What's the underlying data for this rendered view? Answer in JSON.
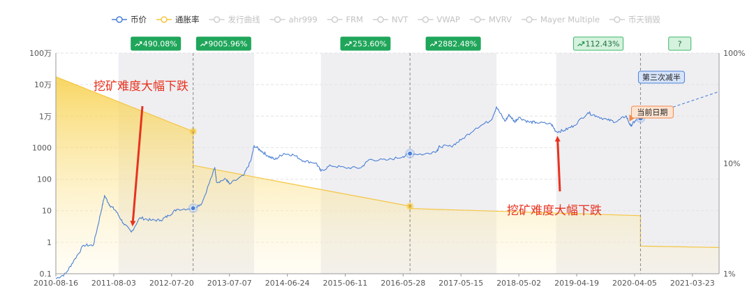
{
  "chart_data": {
    "type": "line",
    "legend": {
      "placement": "top-center",
      "items": [
        {
          "label": "币价",
          "color": "#4a7fd4",
          "active": true
        },
        {
          "label": "通胀率",
          "color": "#f5c542",
          "active": true
        },
        {
          "label": "发行曲线",
          "color": "#cccccc",
          "active": false
        },
        {
          "label": "ahr999",
          "color": "#cccccc",
          "active": false
        },
        {
          "label": "FRM",
          "color": "#cccccc",
          "active": false
        },
        {
          "label": "NVT",
          "color": "#cccccc",
          "active": false
        },
        {
          "label": "VWAP",
          "color": "#cccccc",
          "active": false
        },
        {
          "label": "MVRV",
          "color": "#cccccc",
          "active": false
        },
        {
          "label": "Mayer Multiple",
          "color": "#cccccc",
          "active": false
        },
        {
          "label": "币天销毁",
          "color": "#cccccc",
          "active": false
        }
      ]
    },
    "x_start": "2010-08-16",
    "x_end": "2021-09-01",
    "x_ticks": [
      "2010-08-16",
      "2011-08-03",
      "2012-07-20",
      "2013-07-07",
      "2014-06-24",
      "2015-06-11",
      "2016-05-28",
      "2017-05-15",
      "2018-05-02",
      "2019-04-19",
      "2020-04-05",
      "2021-03-23"
    ],
    "y_left": {
      "scale": "log",
      "min": 0.1,
      "max": 1000000,
      "ticks": [
        "0.1",
        "1",
        "10",
        "100",
        "1000",
        "1万",
        "10万",
        "100万"
      ]
    },
    "y_right": {
      "scale": "log",
      "min": 1,
      "max": 100,
      "ticks": [
        "1%",
        "10%",
        "100%"
      ]
    },
    "grid": true,
    "price_series": {
      "name": "币价",
      "color": "#4a7fd4",
      "points": [
        [
          "2010-08-16",
          0.07
        ],
        [
          "2010-10-15",
          0.1
        ],
        [
          "2010-12-01",
          0.25
        ],
        [
          "2011-02-01",
          0.8
        ],
        [
          "2011-04-01",
          0.8
        ],
        [
          "2011-05-15",
          8
        ],
        [
          "2011-06-08",
          30
        ],
        [
          "2011-07-10",
          15
        ],
        [
          "2011-08-15",
          10
        ],
        [
          "2011-10-01",
          4
        ],
        [
          "2011-11-18",
          2.1
        ],
        [
          "2012-01-10",
          6
        ],
        [
          "2012-03-15",
          5
        ],
        [
          "2012-05-15",
          5
        ],
        [
          "2012-07-01",
          7
        ],
        [
          "2012-08-20",
          11
        ],
        [
          "2012-11-28",
          12
        ],
        [
          "2013-01-20",
          17
        ],
        [
          "2013-04-09",
          230
        ],
        [
          "2013-04-20",
          80
        ],
        [
          "2013-06-15",
          100
        ],
        [
          "2013-07-07",
          70
        ],
        [
          "2013-10-01",
          130
        ],
        [
          "2013-11-15",
          400
        ],
        [
          "2013-12-04",
          1150
        ],
        [
          "2014-01-15",
          800
        ],
        [
          "2014-02-25",
          550
        ],
        [
          "2014-04-10",
          420
        ],
        [
          "2014-06-01",
          650
        ],
        [
          "2014-08-01",
          590
        ],
        [
          "2014-10-01",
          380
        ],
        [
          "2014-12-15",
          330
        ],
        [
          "2015-01-14",
          180
        ],
        [
          "2015-03-15",
          270
        ],
        [
          "2015-06-11",
          230
        ],
        [
          "2015-09-15",
          230
        ],
        [
          "2015-11-04",
          420
        ],
        [
          "2016-02-15",
          400
        ],
        [
          "2016-05-28",
          520
        ],
        [
          "2016-07-09",
          650
        ],
        [
          "2016-10-01",
          610
        ],
        [
          "2016-12-20",
          800
        ],
        [
          "2017-01-05",
          1100
        ],
        [
          "2017-03-15",
          1100
        ],
        [
          "2017-05-15",
          1750
        ],
        [
          "2017-08-15",
          4200
        ],
        [
          "2017-11-15",
          7500
        ],
        [
          "2017-12-17",
          19500
        ],
        [
          "2018-02-06",
          6900
        ],
        [
          "2018-03-05",
          11000
        ],
        [
          "2018-04-06",
          6600
        ],
        [
          "2018-05-02",
          9200
        ],
        [
          "2018-07-01",
          6500
        ],
        [
          "2018-08-15",
          6300
        ],
        [
          "2018-11-15",
          5600
        ],
        [
          "2018-12-15",
          3200
        ],
        [
          "2019-02-01",
          3500
        ],
        [
          "2019-04-02",
          5000
        ],
        [
          "2019-06-26",
          12900
        ],
        [
          "2019-08-15",
          10200
        ],
        [
          "2019-10-25",
          7500
        ],
        [
          "2019-12-17",
          6600
        ],
        [
          "2020-02-13",
          10300
        ],
        [
          "2020-03-12",
          4800
        ],
        [
          "2020-04-05",
          6800
        ],
        [
          "2020-05-11",
          8700
        ]
      ],
      "forecast_end": [
        "2021-09-01",
        60000
      ],
      "halving_markers": [
        "2012-11-28",
        "2016-07-09"
      ],
      "current_marker": "2020-05-11"
    },
    "inflation_series": {
      "name": "通胀率",
      "color": "#f5c542",
      "segments": [
        {
          "from": "2010-08-16",
          "to": "2012-11-28",
          "start": 61.0,
          "end": 19.5,
          "curve": true
        },
        {
          "from": "2012-11-28",
          "to": "2016-07-09",
          "start": 9.6,
          "end": 4.09
        },
        {
          "from": "2016-07-09",
          "to": "2020-05-11",
          "start": 3.9,
          "end": 3.36
        },
        {
          "from": "2020-05-11",
          "to": "2021-09-01",
          "start": 1.78,
          "end": 1.73
        }
      ],
      "markers": [
        [
          "2012-11-28",
          19.5
        ],
        [
          "2016-07-09",
          4.09
        ]
      ]
    },
    "shaded_periods": [
      {
        "from": "2011-09-01",
        "to": "2012-11-28",
        "badge": "490.08%",
        "badge_style": "solid"
      },
      {
        "from": "2012-11-28",
        "to": "2013-12-04",
        "badge": "9005.96%",
        "badge_style": "solid"
      },
      {
        "from": "2015-01-14",
        "to": "2016-07-09",
        "badge": "253.60%",
        "badge_style": "solid"
      },
      {
        "from": "2016-07-09",
        "to": "2017-12-17",
        "badge": "2882.48%",
        "badge_style": "solid"
      },
      {
        "from": "2018-12-15",
        "to": "2020-05-11",
        "badge": "112.43%",
        "badge_style": "light"
      },
      {
        "from": "2020-05-11",
        "to": "2021-09-01",
        "badge": "?",
        "badge_style": "light"
      }
    ],
    "halving_lines": [
      "2012-11-28",
      "2016-07-09",
      "2020-05-11"
    ],
    "annotations": [
      {
        "text": "挖矿难度大幅下跌",
        "anchor": "upper-left",
        "arrow_to": [
          "2011-11-18",
          2.1
        ]
      },
      {
        "text": "挖矿难度大幅下跌",
        "anchor": "lower-right",
        "arrow_to": [
          "2018-12-15",
          3200
        ]
      }
    ],
    "tags": {
      "third_halving": "第三次减半",
      "current_date": "当前日期"
    }
  }
}
